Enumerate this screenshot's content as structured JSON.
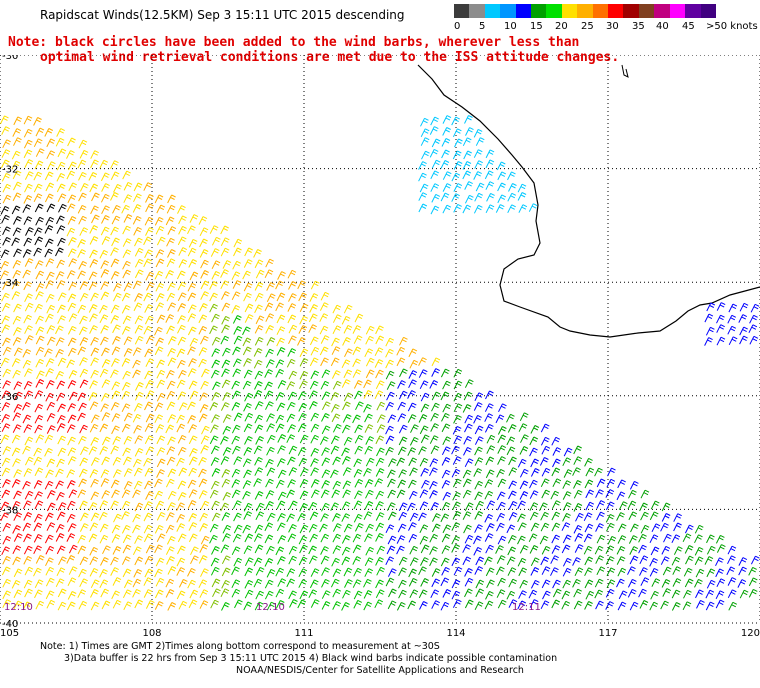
{
  "title": "Rapidscat Winds(12.5KM) Sep  3 15:11 UTC 2015 descending",
  "note_line1": "Note: black circles have been added to the wind barbs, wherever less than",
  "note_line2": "optimal wind retrieval conditions are met due to the ISS attitude changes.",
  "colorbar": {
    "colors": [
      "#3c3c3c",
      "#8c8c8c",
      "#00c8ff",
      "#0096ff",
      "#0000ff",
      "#00a000",
      "#00e000",
      "#ffe000",
      "#ffb000",
      "#ff7000",
      "#ff0000",
      "#a00000",
      "#804020",
      "#c00080",
      "#ff00ff",
      "#6000a0",
      "#400080"
    ],
    "labels": [
      "0",
      "5",
      "10",
      "15",
      "20",
      "25",
      "30",
      "35",
      "40",
      "45",
      ">50 knots"
    ]
  },
  "axes": {
    "lat_labels": [
      "-30",
      "-32",
      "-34",
      "-36",
      "-38",
      "-40"
    ],
    "lon_labels": [
      "105",
      "108",
      "111",
      "114",
      "117",
      "120"
    ],
    "lat_values": [
      -30,
      -32,
      -34,
      -36,
      -38,
      -40
    ],
    "lon_values": [
      105,
      108,
      111,
      114,
      117,
      120
    ]
  },
  "time_labels": [
    "12:10",
    "12:10",
    "12:11"
  ],
  "footer": {
    "line1": "Note: 1) Times are GMT 2)Times along bottom correspond to measurement at ~30S",
    "line2": "3)Data buffer is 22 hrs from Sep  3 15:11 UTC 2015 4) Black wind barbs indicate possible contamination",
    "line3": "NOAA/NESDIS/Center for Satellite Applications and Research"
  }
}
